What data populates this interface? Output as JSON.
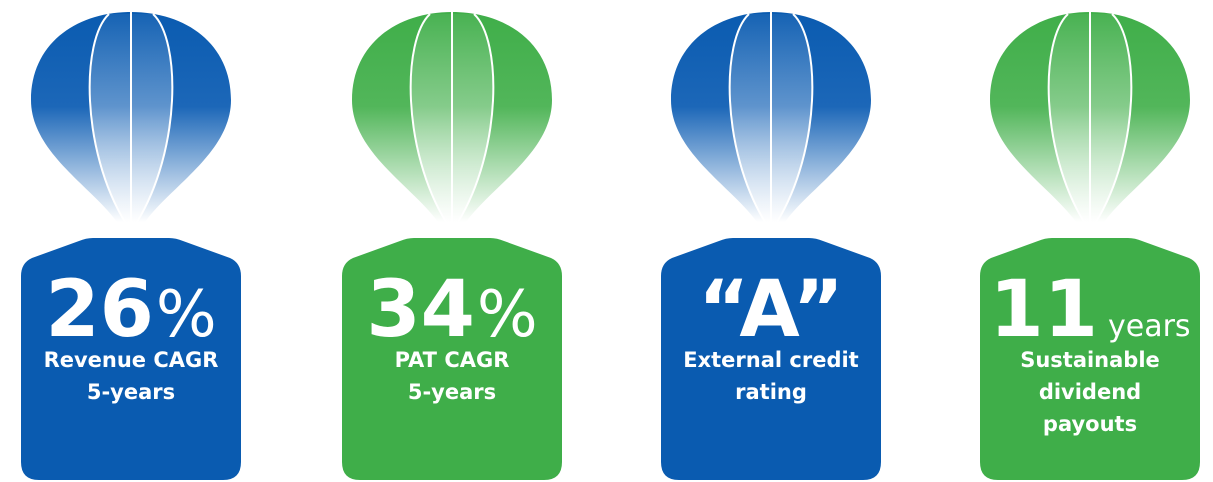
{
  "items": [
    {
      "value": "26",
      "unit": "%",
      "label": [
        "Revenue CAGR",
        "5-years"
      ],
      "color": "#0a5bb0"
    },
    {
      "value": "34",
      "unit": "%",
      "label": [
        "PAT CAGR",
        "5-years"
      ],
      "color": "#3fae49"
    },
    {
      "value": "“A”",
      "label": [
        "External credit",
        "rating"
      ],
      "color": "#0a5bb0"
    },
    {
      "value": "11",
      "unit": "years",
      "label": [
        "Sustainable",
        "dividend",
        "payouts"
      ],
      "color": "#3fae49"
    }
  ]
}
